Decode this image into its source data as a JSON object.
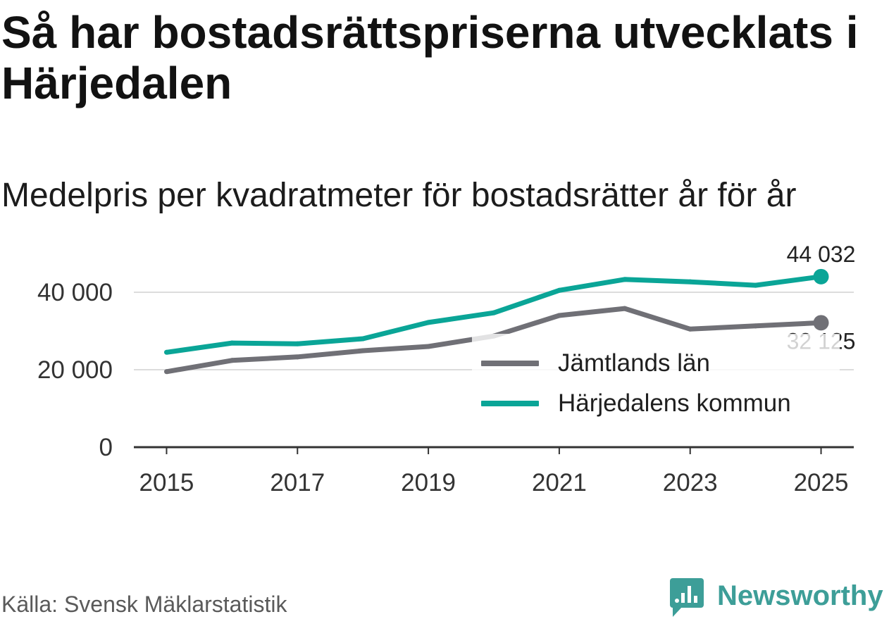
{
  "chart_data": {
    "type": "line",
    "title": "Så har bostadsrättspriserna utvecklats i Härjedalen",
    "subtitle": "Medelpris per kvadratmeter för bostadsrätter år för år",
    "source": "Källa: Svensk Mäklarstatistik",
    "xlabel": "",
    "ylabel": "",
    "x": [
      2015,
      2016,
      2017,
      2018,
      2019,
      2020,
      2021,
      2022,
      2023,
      2024,
      2025
    ],
    "xticks": [
      2015,
      2017,
      2019,
      2021,
      2023,
      2025
    ],
    "xtick_labels": [
      "2015",
      "2017",
      "2019",
      "2021",
      "2023",
      "2025"
    ],
    "yticks": [
      0,
      20000,
      40000
    ],
    "ytick_labels": [
      "0",
      "20 000",
      "40 000"
    ],
    "xlim": [
      2014.5,
      2025.5
    ],
    "ylim": [
      0,
      48000
    ],
    "grid": true,
    "grid_color": "#dcdcdc",
    "axis_color": "#333333",
    "legend_position": "bottom-right",
    "series": [
      {
        "name": "Jämtlands län",
        "color": "#707076",
        "values": [
          19500,
          22400,
          23300,
          24900,
          26000,
          28700,
          34000,
          35800,
          30500,
          31300,
          32125
        ],
        "end_label": "32 125"
      },
      {
        "name": "Härjedalens kommun",
        "color": "#0aa597",
        "values": [
          24500,
          26900,
          26700,
          28000,
          32200,
          34700,
          40500,
          43300,
          42700,
          41800,
          44032
        ],
        "end_label": "44 032"
      }
    ]
  },
  "brand": {
    "name": "Newsworthy",
    "icon": "newsworthy-logo-icon",
    "color": "#3d9e98"
  }
}
